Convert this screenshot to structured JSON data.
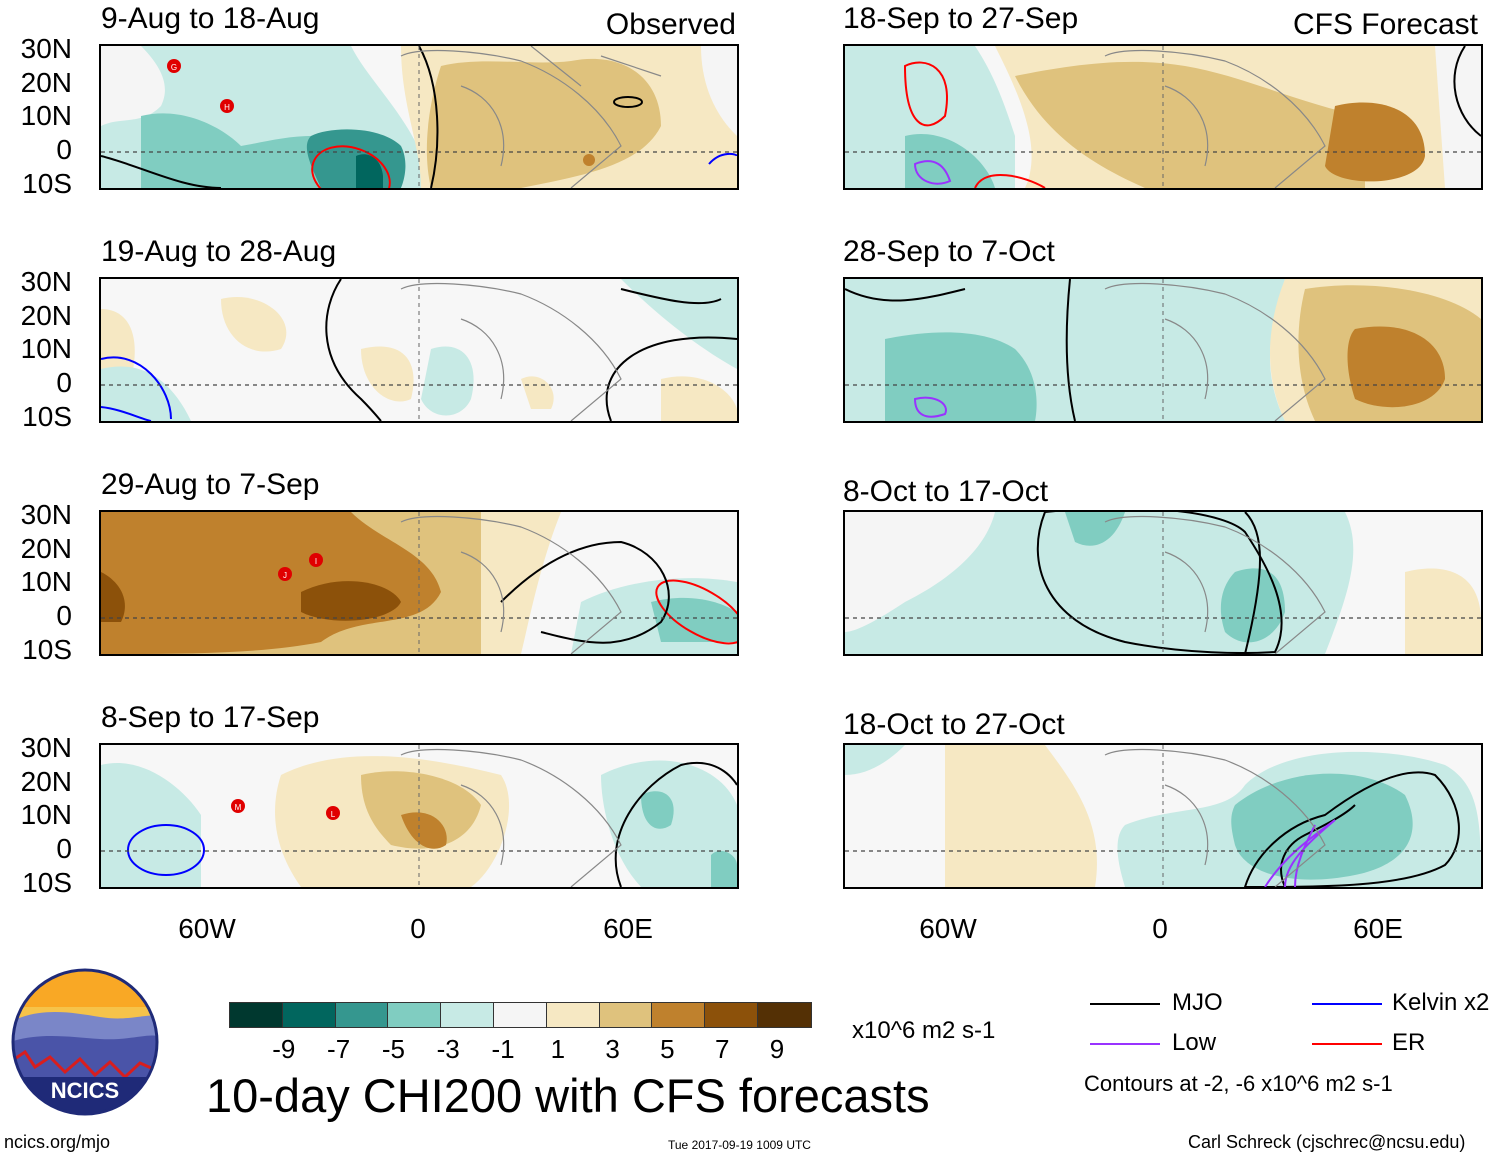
{
  "title": "10-day CHI200 with CFS forecasts",
  "column_headers": {
    "observed": "Observed",
    "forecast": "CFS Forecast"
  },
  "lat_labels": [
    "30N",
    "20N",
    "10N",
    "0",
    "10S"
  ],
  "lon_labels": [
    "60W",
    "0",
    "60E"
  ],
  "panels": {
    "obs": [
      {
        "period": "9-Aug to 18-Aug"
      },
      {
        "period": "19-Aug to 28-Aug"
      },
      {
        "period": "29-Aug to 7-Sep"
      },
      {
        "period": "8-Sep to 17-Sep"
      }
    ],
    "fcst": [
      {
        "period": "18-Sep to 27-Sep"
      },
      {
        "period": "28-Sep to 7-Oct"
      },
      {
        "period": "8-Oct to 17-Oct"
      },
      {
        "period": "18-Oct to 27-Oct"
      }
    ]
  },
  "storm_markers": {
    "p0": [
      "G",
      "H"
    ],
    "p2": [
      "J",
      "I"
    ],
    "p3": [
      "M",
      "L"
    ]
  },
  "colorbar": {
    "colors": [
      "#00382f",
      "#01665e",
      "#35978f",
      "#80cdc1",
      "#c7eae5",
      "#f5f5f5",
      "#f6e8c3",
      "#dfc27d",
      "#bf812d",
      "#8c510a",
      "#543005"
    ],
    "ticks": [
      "-9",
      "-7",
      "-5",
      "-3",
      "-1",
      "1",
      "3",
      "5",
      "7",
      "9"
    ],
    "units": "x10^6 m2 s-1"
  },
  "legend": {
    "items": [
      {
        "label": "MJO",
        "color": "#000000"
      },
      {
        "label": "Kelvin x2",
        "color": "#0000ff"
      },
      {
        "label": "Low",
        "color": "#9933ff"
      },
      {
        "label": "ER",
        "color": "#ff0000"
      }
    ],
    "note": "Contours at -2, -6 x10^6 m2 s-1"
  },
  "logo": {
    "text": "NCICS"
  },
  "footer": {
    "left": "ncics.org/mjo",
    "center": "Tue 2017-09-19 1009 UTC",
    "right": "Carl Schreck (cjschrec@ncsu.edu)"
  }
}
